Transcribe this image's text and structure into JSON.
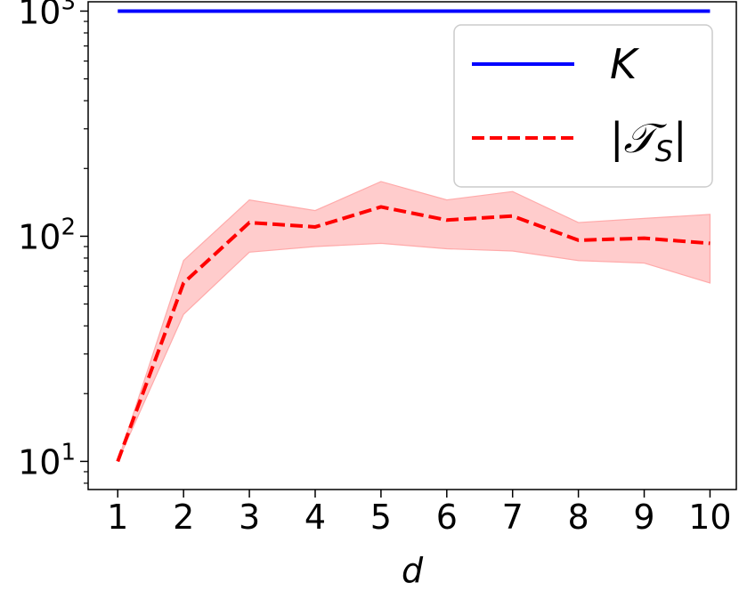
{
  "chart_data": {
    "type": "line",
    "title": "",
    "xlabel": "d",
    "ylabel": "",
    "x": [
      1,
      2,
      3,
      4,
      5,
      6,
      7,
      8,
      9,
      10
    ],
    "xlim": [
      0.55,
      10.4
    ],
    "ylim": [
      7.5,
      1100
    ],
    "yscale": "log",
    "x_ticks": [
      1,
      2,
      3,
      4,
      5,
      6,
      7,
      8,
      9,
      10
    ],
    "y_ticks": [
      10,
      100,
      1000
    ],
    "y_tick_labels": [
      {
        "base": "10",
        "exp": "1"
      },
      {
        "base": "10",
        "exp": "2"
      },
      {
        "base": "10",
        "exp": "3"
      }
    ],
    "grid": false,
    "legend_position": "top-right",
    "series": [
      {
        "name": "K",
        "color": "#0000ff",
        "style": "solid",
        "values": [
          1000,
          1000,
          1000,
          1000,
          1000,
          1000,
          1000,
          1000,
          1000,
          1000
        ]
      },
      {
        "name": "|T_S|",
        "color": "#ff0000",
        "style": "dashed",
        "values": [
          10,
          62,
          115,
          110,
          135,
          118,
          123,
          96,
          98,
          93
        ],
        "band_lower": [
          10,
          45,
          85,
          90,
          93,
          88,
          86,
          78,
          76,
          62
        ],
        "band_upper": [
          10,
          78,
          145,
          130,
          175,
          145,
          158,
          115,
          120,
          125
        ],
        "band_color": "#ffcccc"
      }
    ],
    "legend": [
      {
        "label_main": "K",
        "label_sub": ""
      },
      {
        "label_main": "|𝒯",
        "label_sub": "S",
        "label_end": "|"
      }
    ]
  }
}
